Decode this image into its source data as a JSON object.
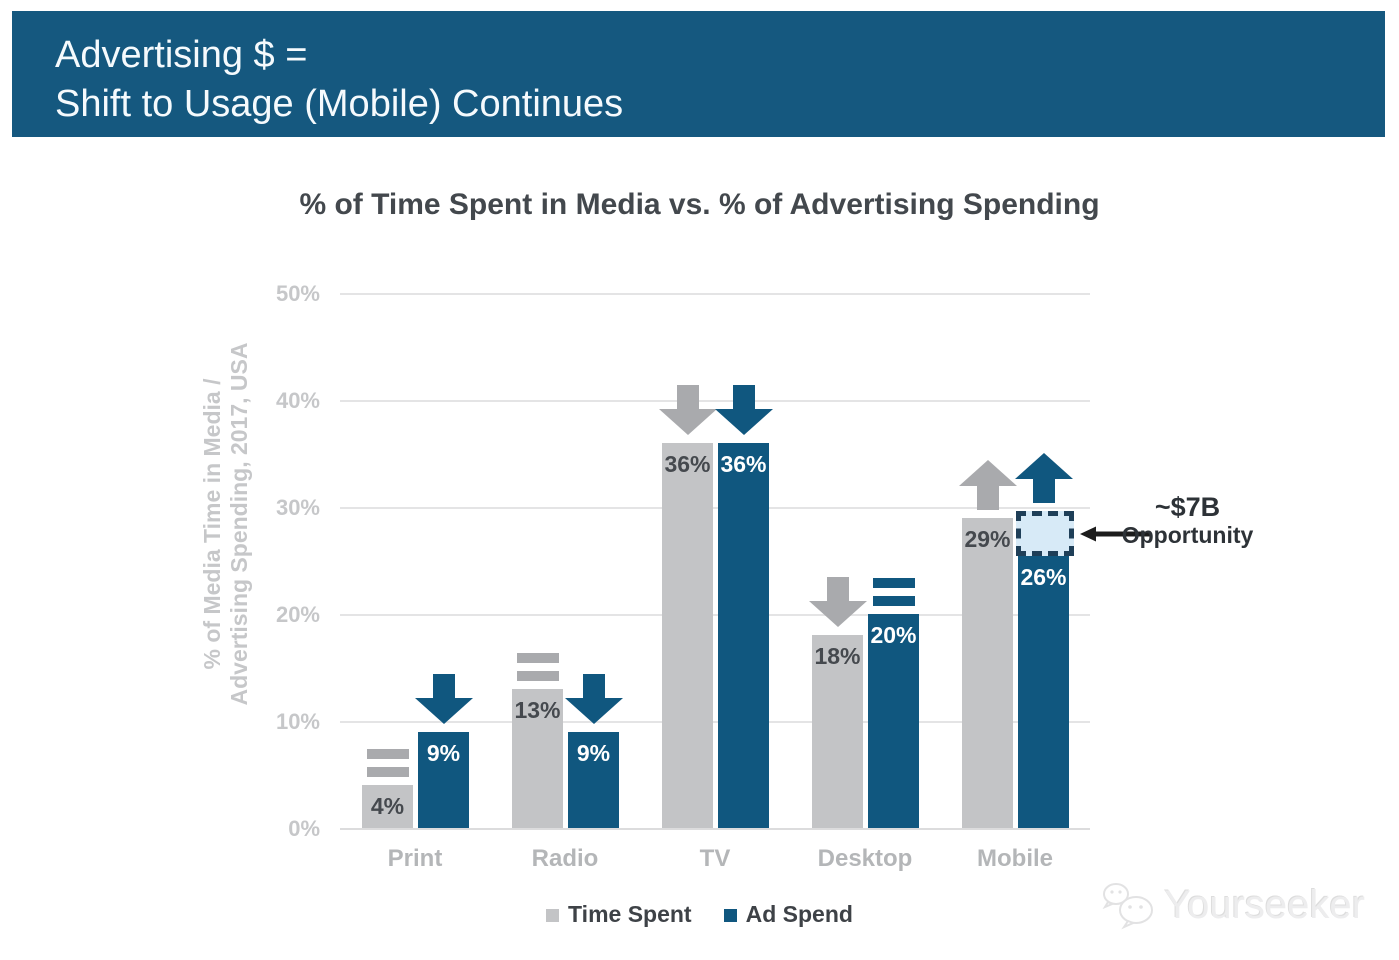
{
  "header": {
    "bg": "#15587f",
    "line1": "Advertising $ =",
    "line2": "Shift to Usage (Mobile) Continues"
  },
  "chart_data": {
    "type": "bar",
    "title": "% of Time Spent in Media vs. % of Advertising Spending",
    "ylabel_line1": "% of Media Time in Media /",
    "ylabel_line2": "Advertising Spending, 2017, USA",
    "categories": [
      "Print",
      "Radio",
      "TV",
      "Desktop",
      "Mobile"
    ],
    "yticks": [
      "0%",
      "10%",
      "20%",
      "30%",
      "40%",
      "50%"
    ],
    "ylim": [
      0,
      50
    ],
    "grid": true,
    "legend_position": "bottom",
    "series": [
      {
        "name": "Time Spent",
        "color": "#c3c4c6",
        "values": [
          4,
          13,
          36,
          18,
          29
        ],
        "value_labels": [
          "4%",
          "13%",
          "36%",
          "18%",
          "29%"
        ],
        "trends": [
          "flat",
          "flat",
          "down",
          "down",
          "up"
        ],
        "trend_color": "#a9aaad",
        "label_color": "#45494e"
      },
      {
        "name": "Ad Spend",
        "color": "#10577f",
        "values": [
          9,
          9,
          36,
          20,
          26
        ],
        "value_labels": [
          "9%",
          "9%",
          "36%",
          "20%",
          "26%"
        ],
        "trends": [
          "down",
          "down",
          "down",
          "flat",
          "up"
        ],
        "trend_color": "#10577f",
        "label_color": "#ffffff"
      }
    ],
    "annotation": {
      "line1": "~$7B",
      "line2": "Opportunity",
      "target_series": "Ad Spend",
      "target_category": "Mobile",
      "box_top_value": 29.6,
      "box_bottom_value": 25.4,
      "box_fill": "#d7eaf7",
      "box_border": "#1f3f58",
      "arrow_color": "#1c1c1c"
    }
  },
  "watermark": {
    "text": "Yourseeker",
    "logo": "wechat-icon"
  }
}
